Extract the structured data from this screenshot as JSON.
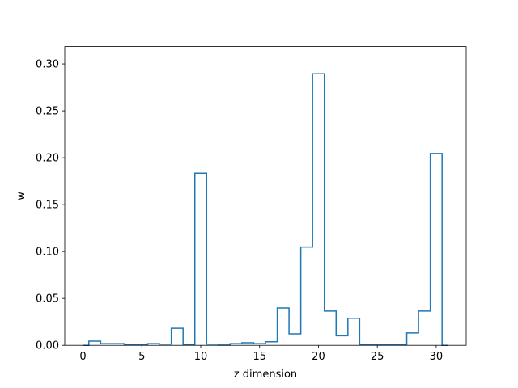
{
  "chart_data": {
    "type": "line",
    "drawstyle": "steps-mid",
    "title": "",
    "xlabel": "z dimension",
    "ylabel": "w",
    "xlim": [
      -1.55,
      32.55
    ],
    "ylim": [
      0.0,
      0.3185
    ],
    "x_ticks": [
      0,
      5,
      10,
      15,
      20,
      25,
      30
    ],
    "x_tick_labels": [
      "0",
      "5",
      "10",
      "15",
      "20",
      "25",
      "30"
    ],
    "y_ticks": [
      0.0,
      0.05,
      0.1,
      0.15,
      0.2,
      0.25,
      0.3
    ],
    "y_tick_labels": [
      "0.00",
      "0.05",
      "0.10",
      "0.15",
      "0.20",
      "0.25",
      "0.30"
    ],
    "grid": false,
    "series_color": "#1f77b4",
    "series": [
      {
        "x": [
          0,
          1,
          2,
          3,
          4,
          5,
          6,
          7,
          8,
          9,
          10,
          11,
          12,
          13,
          14,
          15,
          16,
          17,
          18,
          19,
          20,
          21,
          22,
          23,
          24,
          25,
          26,
          27,
          28,
          29,
          30,
          31
        ],
        "values": [
          0.0,
          0.0045,
          0.0018,
          0.0018,
          0.0008,
          0.0005,
          0.0018,
          0.0012,
          0.0182,
          0.0005,
          0.1835,
          0.0012,
          0.0003,
          0.0018,
          0.0028,
          0.0018,
          0.0038,
          0.0398,
          0.0122,
          0.1048,
          0.2895,
          0.0365,
          0.0102,
          0.0288,
          0.0005,
          0.0005,
          0.0005,
          0.0005,
          0.0132,
          0.0365,
          0.2045,
          0.0
        ]
      }
    ]
  }
}
